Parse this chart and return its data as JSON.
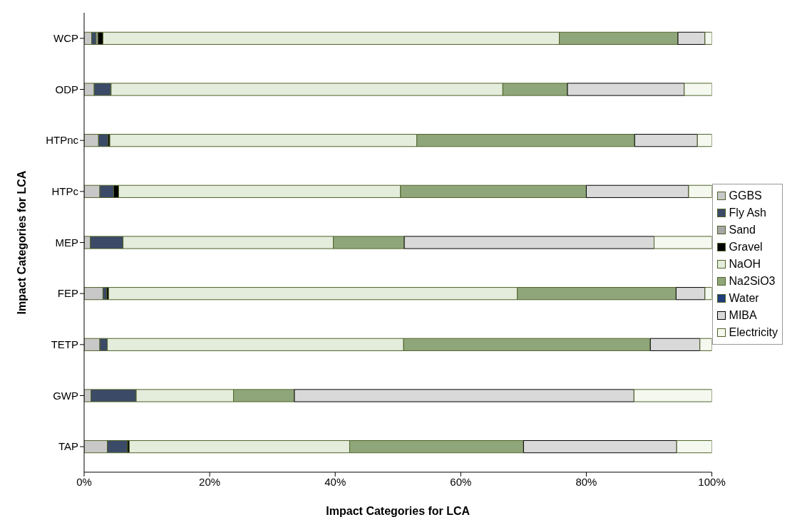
{
  "chart_data": {
    "type": "bar",
    "orientation": "horizontal",
    "stacked": true,
    "xlabel": "Impact Categories for LCA",
    "ylabel": "Impact Categories for LCA",
    "categories": [
      "WCP",
      "ODP",
      "HTPnc",
      "HTPc",
      "MEP",
      "FEP",
      "TETP",
      "GWP",
      "TAP"
    ],
    "series": [
      {
        "name": "GGBS",
        "color": "#c8c8c8",
        "values": [
          1.2,
          1.6,
          2.3,
          2.5,
          1,
          3,
          2.5,
          1.1,
          3.7
        ]
      },
      {
        "name": "Fly Ash",
        "color": "#3b4a66",
        "values": [
          0.7,
          2.7,
          1.5,
          2.2,
          5.2,
          0.6,
          1.2,
          7.2,
          3.2
        ]
      },
      {
        "name": "Sand",
        "color": "#a6a6a6",
        "values": [
          0.3,
          0,
          0,
          0,
          0,
          0,
          0,
          0,
          0
        ]
      },
      {
        "name": "Gravel",
        "color": "#000000",
        "values": [
          0.8,
          0,
          0.3,
          0.8,
          0,
          0.3,
          0,
          0,
          0.3
        ]
      },
      {
        "name": "NaOH",
        "color": "#e4ecdc",
        "values": [
          72.7,
          62.4,
          48.9,
          44.9,
          33.5,
          65.1,
          47.2,
          15.5,
          35.1
        ]
      },
      {
        "name": "Na2SiO3",
        "color": "#8fa67a",
        "values": [
          18.9,
          10.3,
          34.7,
          29.6,
          11.3,
          25.3,
          39.3,
          9.7,
          27.7
        ]
      },
      {
        "name": "Water",
        "color": "#1f3d7a",
        "values": [
          0,
          0,
          0,
          0,
          0,
          0,
          0,
          0,
          0
        ]
      },
      {
        "name": "MIBA",
        "color": "#d9d9d9",
        "values": [
          4.3,
          18.6,
          10,
          16.3,
          39.8,
          4.6,
          7.9,
          54.1,
          24.4
        ]
      },
      {
        "name": "Electricity",
        "color": "#f4f8ef",
        "values": [
          1.1,
          4.4,
          2.3,
          3.7,
          9.2,
          1.1,
          1.9,
          12.4,
          5.6
        ]
      }
    ],
    "xlim": [
      0,
      100
    ],
    "xticks": [
      {
        "value": 0,
        "label": "0%"
      },
      {
        "value": 20,
        "label": "20%"
      },
      {
        "value": 40,
        "label": "40%"
      },
      {
        "value": 60,
        "label": "60%"
      },
      {
        "value": 80,
        "label": "80%"
      },
      {
        "value": 100,
        "label": "100%"
      }
    ],
    "grid": false,
    "legend": "right"
  }
}
